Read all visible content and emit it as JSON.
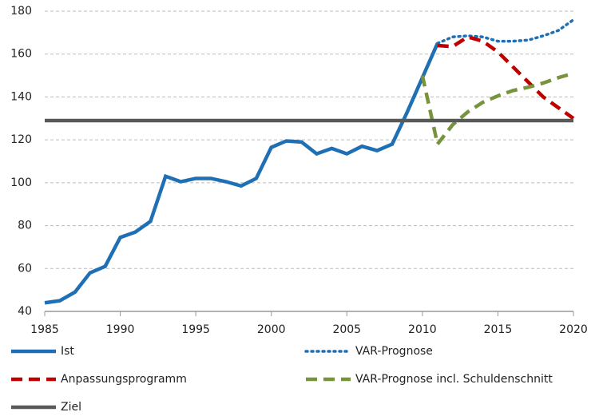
{
  "chart_data": {
    "type": "line",
    "x": [
      1985,
      1986,
      1987,
      1988,
      1989,
      1990,
      1991,
      1992,
      1993,
      1994,
      1995,
      1996,
      1997,
      1998,
      1999,
      2000,
      2001,
      2002,
      2003,
      2004,
      2005,
      2006,
      2007,
      2008,
      2009,
      2010,
      2011,
      2012,
      2013,
      2014,
      2015,
      2016,
      2017,
      2018,
      2019,
      2020
    ],
    "series": [
      {
        "name": "Ist",
        "color": "#1f6fb5",
        "dash": "solid",
        "values": [
          44,
          45,
          49,
          58,
          61,
          74.5,
          77,
          82,
          103,
          100.5,
          102,
          102,
          100.5,
          98.5,
          102,
          116.5,
          119.5,
          119,
          113.5,
          116,
          113.5,
          117,
          115,
          118,
          133,
          149,
          165,
          null,
          null,
          null,
          null,
          null,
          null,
          null,
          null,
          null
        ]
      },
      {
        "name": "VAR-Prognose",
        "color": "#1f6fb5",
        "dash": "dotted",
        "values": [
          null,
          null,
          null,
          null,
          null,
          null,
          null,
          null,
          null,
          null,
          null,
          null,
          null,
          null,
          null,
          null,
          null,
          null,
          null,
          null,
          null,
          null,
          null,
          null,
          null,
          null,
          165,
          168,
          168.5,
          168,
          166,
          166,
          166.5,
          168.5,
          171,
          176
        ]
      },
      {
        "name": "Anpassungsprogramm",
        "color": "#c00000",
        "dash": "dashed",
        "values": [
          null,
          null,
          null,
          null,
          null,
          null,
          null,
          null,
          null,
          null,
          null,
          null,
          null,
          null,
          null,
          null,
          null,
          null,
          null,
          null,
          null,
          null,
          null,
          null,
          null,
          null,
          164,
          163.5,
          168,
          166,
          161,
          154,
          147,
          140,
          135,
          130
        ]
      },
      {
        "name": "VAR-Prognose incl. Schuldenschnitt",
        "color": "#77933c",
        "dash": "dashed",
        "values": [
          null,
          null,
          null,
          null,
          null,
          null,
          null,
          null,
          null,
          null,
          null,
          null,
          null,
          null,
          null,
          null,
          null,
          null,
          null,
          null,
          null,
          null,
          null,
          null,
          null,
          150,
          118,
          127,
          133,
          137.5,
          140.5,
          143,
          144.5,
          146.5,
          149,
          151
        ]
      },
      {
        "name": "Ziel",
        "color": "#595959",
        "dash": "solid",
        "values": [
          129,
          129,
          129,
          129,
          129,
          129,
          129,
          129,
          129,
          129,
          129,
          129,
          129,
          129,
          129,
          129,
          129,
          129,
          129,
          129,
          129,
          129,
          129,
          129,
          129,
          129,
          129,
          129,
          129,
          129,
          129,
          129,
          129,
          129,
          129,
          129
        ]
      }
    ],
    "xlim": [
      1985,
      2020
    ],
    "xticks": [
      1985,
      1990,
      1995,
      2000,
      2005,
      2010,
      2015,
      2020
    ],
    "ylim": [
      40,
      180
    ],
    "yticks": [
      40,
      60,
      80,
      100,
      120,
      140,
      160,
      180
    ],
    "grid": true,
    "legend": "bottom"
  }
}
